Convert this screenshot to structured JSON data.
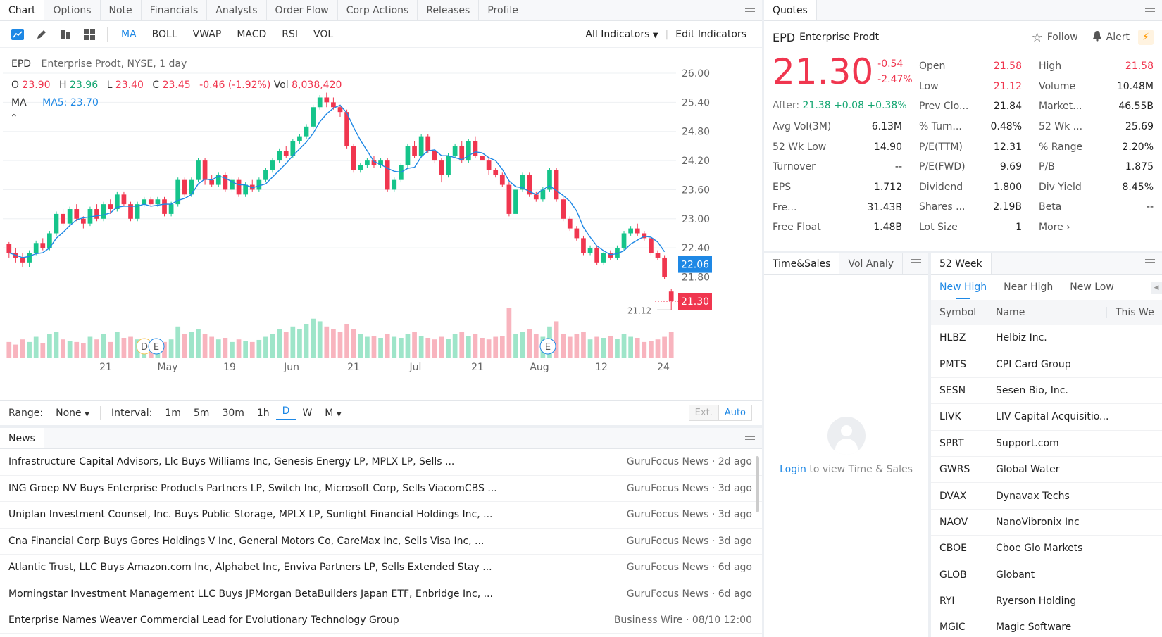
{
  "chart_tabs": [
    "Chart",
    "Options",
    "Note",
    "Financials",
    "Analysts",
    "Order Flow",
    "Corp Actions",
    "Releases",
    "Profile"
  ],
  "indicators": [
    "MA",
    "BOLL",
    "VWAP",
    "MACD",
    "RSI",
    "VOL"
  ],
  "all_indicators": "All Indicators",
  "edit_indicators": "Edit Indicators",
  "legend": {
    "symbol": "EPD",
    "desc": "Enterprise Prodt, NYSE, 1 day",
    "o_label": "O",
    "o": "23.90",
    "h_label": "H",
    "h": "23.96",
    "l_label": "L",
    "l": "23.40",
    "c_label": "C",
    "c": "23.45",
    "chg": "-0.46 (-1.92%)",
    "vol_label": "Vol",
    "vol": "8,038,420",
    "ma_label": "MA",
    "ma5": "MA5: 23.70",
    "collapse": "⌃"
  },
  "chart_data": {
    "type": "candlestick",
    "y_ticks": [
      "26.00",
      "25.40",
      "24.80",
      "24.20",
      "23.60",
      "23.00",
      "22.40",
      "21.80"
    ],
    "ylim": [
      21.3,
      26.0
    ],
    "x_ticks": [
      "21",
      "May",
      "19",
      "Jun",
      "21",
      "Jul",
      "21",
      "Aug",
      "12",
      "24"
    ],
    "last_ma_label": "22.06",
    "last_price_label": "21.30",
    "low_marker": "21.12",
    "candles": [
      [
        22.48,
        22.3,
        22.52,
        22.2
      ],
      [
        22.3,
        22.2,
        22.4,
        22.1
      ],
      [
        22.2,
        22.1,
        22.3,
        22.0
      ],
      [
        22.1,
        22.3,
        22.35,
        22.0
      ],
      [
        22.3,
        22.5,
        22.55,
        22.25
      ],
      [
        22.5,
        22.4,
        22.6,
        22.35
      ],
      [
        22.4,
        22.7,
        22.75,
        22.35
      ],
      [
        22.7,
        23.1,
        23.15,
        22.65
      ],
      [
        23.1,
        22.9,
        23.2,
        22.85
      ],
      [
        22.9,
        23.2,
        23.25,
        22.85
      ],
      [
        23.2,
        23.0,
        23.3,
        22.95
      ],
      [
        23.0,
        22.9,
        23.05,
        22.8
      ],
      [
        22.9,
        23.2,
        23.25,
        22.85
      ],
      [
        23.2,
        23.0,
        23.3,
        22.95
      ],
      [
        23.0,
        23.3,
        23.35,
        22.95
      ],
      [
        23.3,
        23.2,
        23.4,
        23.1
      ],
      [
        23.2,
        23.5,
        23.55,
        23.15
      ],
      [
        23.5,
        23.3,
        23.55,
        23.25
      ],
      [
        23.3,
        23.0,
        23.35,
        22.95
      ],
      [
        23.0,
        23.3,
        23.35,
        22.95
      ],
      [
        23.3,
        23.4,
        23.45,
        23.25
      ],
      [
        23.4,
        23.3,
        23.45,
        23.25
      ],
      [
        23.3,
        23.4,
        23.45,
        23.25
      ],
      [
        23.4,
        23.1,
        23.45,
        23.05
      ],
      [
        23.1,
        23.3,
        23.35,
        23.05
      ],
      [
        23.3,
        23.8,
        23.85,
        23.25
      ],
      [
        23.8,
        23.5,
        23.85,
        23.45
      ],
      [
        23.5,
        23.8,
        23.85,
        23.45
      ],
      [
        23.8,
        24.2,
        24.25,
        23.75
      ],
      [
        24.2,
        23.8,
        24.25,
        23.7
      ],
      [
        23.8,
        23.7,
        23.9,
        23.65
      ],
      [
        23.7,
        23.9,
        23.95,
        23.65
      ],
      [
        23.9,
        23.6,
        23.95,
        23.55
      ],
      [
        23.6,
        23.8,
        23.85,
        23.55
      ],
      [
        23.8,
        23.5,
        23.85,
        23.45
      ],
      [
        23.5,
        23.7,
        23.75,
        23.45
      ],
      [
        23.7,
        23.6,
        23.8,
        23.55
      ],
      [
        23.6,
        23.8,
        23.85,
        23.55
      ],
      [
        23.8,
        24.0,
        24.05,
        23.75
      ],
      [
        24.0,
        24.2,
        24.25,
        23.95
      ],
      [
        24.2,
        24.4,
        24.45,
        24.15
      ],
      [
        24.4,
        24.3,
        24.5,
        24.25
      ],
      [
        24.3,
        24.6,
        24.65,
        24.25
      ],
      [
        24.6,
        24.7,
        24.75,
        24.55
      ],
      [
        24.7,
        24.9,
        24.95,
        24.65
      ],
      [
        24.9,
        25.3,
        25.35,
        24.85
      ],
      [
        25.3,
        25.5,
        25.55,
        25.25
      ],
      [
        25.5,
        25.4,
        25.6,
        25.3
      ],
      [
        25.4,
        25.3,
        25.5,
        25.25
      ],
      [
        25.3,
        25.2,
        25.35,
        25.1
      ],
      [
        25.2,
        24.5,
        25.25,
        24.45
      ],
      [
        24.5,
        24.0,
        24.55,
        23.95
      ],
      [
        24.0,
        24.1,
        24.15,
        23.95
      ],
      [
        24.1,
        24.2,
        24.25,
        24.05
      ],
      [
        24.2,
        24.1,
        24.3,
        24.05
      ],
      [
        24.1,
        24.2,
        24.25,
        24.05
      ],
      [
        24.2,
        23.6,
        24.25,
        23.55
      ],
      [
        23.6,
        23.8,
        23.85,
        23.55
      ],
      [
        23.8,
        24.1,
        24.15,
        23.75
      ],
      [
        24.1,
        24.5,
        24.55,
        24.05
      ],
      [
        24.5,
        24.3,
        24.6,
        24.25
      ],
      [
        24.3,
        24.7,
        24.75,
        24.25
      ],
      [
        24.7,
        24.4,
        24.75,
        24.35
      ],
      [
        24.4,
        24.2,
        24.45,
        24.15
      ],
      [
        24.2,
        23.9,
        24.25,
        23.75
      ],
      [
        23.9,
        24.3,
        24.35,
        23.85
      ],
      [
        24.3,
        24.5,
        24.55,
        24.25
      ],
      [
        24.5,
        24.2,
        24.6,
        24.15
      ],
      [
        24.2,
        24.6,
        24.65,
        24.15
      ],
      [
        24.6,
        24.3,
        24.7,
        24.25
      ],
      [
        24.3,
        24.2,
        24.35,
        24.15
      ],
      [
        24.2,
        24.0,
        24.25,
        23.9
      ],
      [
        24.0,
        23.9,
        24.05,
        23.85
      ],
      [
        23.9,
        23.7,
        23.95,
        23.65
      ],
      [
        23.7,
        23.1,
        23.75,
        23.05
      ],
      [
        23.1,
        23.6,
        23.65,
        23.05
      ],
      [
        23.6,
        23.9,
        23.95,
        23.55
      ],
      [
        23.9,
        23.5,
        23.95,
        23.45
      ],
      [
        23.5,
        23.4,
        23.55,
        23.35
      ],
      [
        23.4,
        23.6,
        23.65,
        23.35
      ],
      [
        23.6,
        24.0,
        24.05,
        23.55
      ],
      [
        24.0,
        23.4,
        24.05,
        23.35
      ],
      [
        23.4,
        23.0,
        23.45,
        22.95
      ],
      [
        23.0,
        22.8,
        23.05,
        22.75
      ],
      [
        22.8,
        22.6,
        22.85,
        22.55
      ],
      [
        22.6,
        22.3,
        22.65,
        22.25
      ],
      [
        22.3,
        22.4,
        22.45,
        22.25
      ],
      [
        22.4,
        22.1,
        22.45,
        22.05
      ],
      [
        22.1,
        22.3,
        22.35,
        22.05
      ],
      [
        22.3,
        22.2,
        22.35,
        22.15
      ],
      [
        22.2,
        22.4,
        22.45,
        22.15
      ],
      [
        22.4,
        22.7,
        22.75,
        22.35
      ],
      [
        22.7,
        22.8,
        22.85,
        22.65
      ],
      [
        22.8,
        22.7,
        22.9,
        22.65
      ],
      [
        22.7,
        22.6,
        22.75,
        22.55
      ],
      [
        22.6,
        22.3,
        22.65,
        22.25
      ],
      [
        22.3,
        22.2,
        22.35,
        22.15
      ],
      [
        22.2,
        21.8,
        22.25,
        21.75
      ],
      [
        21.5,
        21.3,
        21.55,
        21.12
      ]
    ],
    "volumes": [
      0.3,
      0.25,
      0.35,
      0.3,
      0.4,
      0.28,
      0.45,
      0.5,
      0.35,
      0.32,
      0.3,
      0.28,
      0.4,
      0.35,
      0.45,
      0.3,
      0.5,
      0.38,
      0.4,
      0.35,
      0.3,
      0.32,
      0.28,
      0.3,
      0.35,
      0.6,
      0.45,
      0.5,
      0.55,
      0.45,
      0.4,
      0.35,
      0.38,
      0.3,
      0.35,
      0.32,
      0.3,
      0.34,
      0.4,
      0.45,
      0.55,
      0.5,
      0.6,
      0.55,
      0.65,
      0.75,
      0.7,
      0.6,
      0.55,
      0.5,
      0.65,
      0.55,
      0.45,
      0.4,
      0.42,
      0.38,
      0.45,
      0.4,
      0.38,
      0.45,
      0.5,
      0.42,
      0.38,
      0.35,
      0.4,
      0.36,
      0.45,
      0.5,
      0.42,
      0.45,
      0.38,
      0.35,
      0.4,
      0.42,
      0.95,
      0.45,
      0.5,
      0.55,
      0.45,
      0.4,
      0.6,
      0.7,
      0.45,
      0.4,
      0.45,
      0.5,
      0.35,
      0.4,
      0.38,
      0.42,
      0.36,
      0.45,
      0.4,
      0.38,
      0.3,
      0.32,
      0.35,
      0.4,
      0.5
    ],
    "ma5_color": "#1e88e5",
    "up_color": "#15c48a",
    "down_color": "#f0364f",
    "events": [
      "D",
      "E",
      "E"
    ]
  },
  "range": {
    "range_label": "Range:",
    "range_val": "None",
    "interval_label": "Interval:",
    "intervals": [
      "1m",
      "5m",
      "30m",
      "1h",
      "D",
      "W",
      "M"
    ],
    "ext": "Ext.",
    "auto": "Auto"
  },
  "news": {
    "tab": "News",
    "items": [
      {
        "title": "Infrastructure Capital Advisors, Llc Buys Williams Inc, Genesis Energy LP, MPLX LP, Sells ...",
        "src": "GuruFocus News · 2d ago"
      },
      {
        "title": "ING Groep NV Buys Enterprise Products Partners LP, Switch Inc, Microsoft Corp, Sells ViacomCBS ...",
        "src": "GuruFocus News · 3d ago"
      },
      {
        "title": "Uniplan Investment Counsel, Inc. Buys Public Storage, MPLX LP, Sunlight Financial Holdings Inc, ...",
        "src": "GuruFocus News · 3d ago"
      },
      {
        "title": "Cna Financial Corp Buys Gores Holdings V Inc, General Motors Co, CareMax Inc, Sells Visa Inc, ...",
        "src": "GuruFocus News · 3d ago"
      },
      {
        "title": "Atlantic Trust, LLC Buys Amazon.com Inc, Alphabet Inc, Enviva Partners LP, Sells Extended Stay ...",
        "src": "GuruFocus News · 6d ago"
      },
      {
        "title": "Morningstar Investment Management LLC Buys JPMorgan BetaBuilders Japan ETF, Enbridge Inc, ...",
        "src": "GuruFocus News · 6d ago"
      },
      {
        "title": "Enterprise Names Weaver Commercial Lead for Evolutionary Technology Group",
        "src": "Business Wire · 08/10 12:00"
      }
    ]
  },
  "quotes": {
    "tab": "Quotes",
    "symbol": "EPD",
    "name": "Enterprise Prodt",
    "follow": "Follow",
    "alert": "Alert",
    "price": "21.30",
    "chg": "-0.54",
    "chg_pct": "-2.47%",
    "after_label": "After:",
    "after": "21.38 +0.08 +0.38%",
    "left": [
      {
        "l": "Avg Vol(3M)",
        "v": "6.13M"
      },
      {
        "l": "52 Wk Low",
        "v": "14.90"
      },
      {
        "l": "Turnover",
        "v": "--"
      },
      {
        "l": "EPS",
        "v": "1.712"
      },
      {
        "l": "Fre...",
        "v": "31.43B"
      },
      {
        "l": "Free Float",
        "v": "1.48B"
      }
    ],
    "mid": [
      {
        "l": "Open",
        "v": "21.58"
      },
      {
        "l": "Low",
        "v": "21.12"
      },
      {
        "l": "Prev Clo...",
        "v": "21.84"
      },
      {
        "l": "% Turn...",
        "v": "0.48%"
      },
      {
        "l": "P/E(TTM)",
        "v": "12.31"
      },
      {
        "l": "P/E(FWD)",
        "v": "9.69"
      },
      {
        "l": "Dividend",
        "v": "1.800"
      },
      {
        "l": "Shares ...",
        "v": "2.19B"
      },
      {
        "l": "Lot Size",
        "v": "1"
      }
    ],
    "right": [
      {
        "l": "High",
        "v": "21.58"
      },
      {
        "l": "Volume",
        "v": "10.48M"
      },
      {
        "l": "Market...",
        "v": "46.55B"
      },
      {
        "l": "52 Wk ...",
        "v": "25.69"
      },
      {
        "l": "% Range",
        "v": "2.20%"
      },
      {
        "l": "P/B",
        "v": "1.875"
      },
      {
        "l": "Div Yield",
        "v": "8.45%"
      },
      {
        "l": "Beta",
        "v": "--"
      },
      {
        "l": "More ›",
        "v": ""
      }
    ]
  },
  "time_sales": {
    "tab1": "Time&Sales",
    "tab2": "Vol Analy",
    "login": "Login",
    "login_text": " to view Time & Sales"
  },
  "week52": {
    "tab": "52 Week",
    "subtabs": [
      "New High",
      "Near High",
      "New Low"
    ],
    "cols": [
      "Symbol",
      "Name",
      "This We"
    ],
    "rows": [
      {
        "s": "HLBZ",
        "n": "Helbiz Inc."
      },
      {
        "s": "PMTS",
        "n": "CPI Card Group"
      },
      {
        "s": "SESN",
        "n": "Sesen Bio, Inc."
      },
      {
        "s": "LIVK",
        "n": "LIV Capital Acquisitio..."
      },
      {
        "s": "SPRT",
        "n": "Support.com"
      },
      {
        "s": "GWRS",
        "n": "Global Water"
      },
      {
        "s": "DVAX",
        "n": "Dynavax Techs"
      },
      {
        "s": "NAOV",
        "n": "NanoVibronix Inc"
      },
      {
        "s": "CBOE",
        "n": "Cboe Glo Markets"
      },
      {
        "s": "GLOB",
        "n": "Globant"
      },
      {
        "s": "RYI",
        "n": "Ryerson Holding"
      },
      {
        "s": "MGIC",
        "n": "Magic Software"
      }
    ]
  }
}
